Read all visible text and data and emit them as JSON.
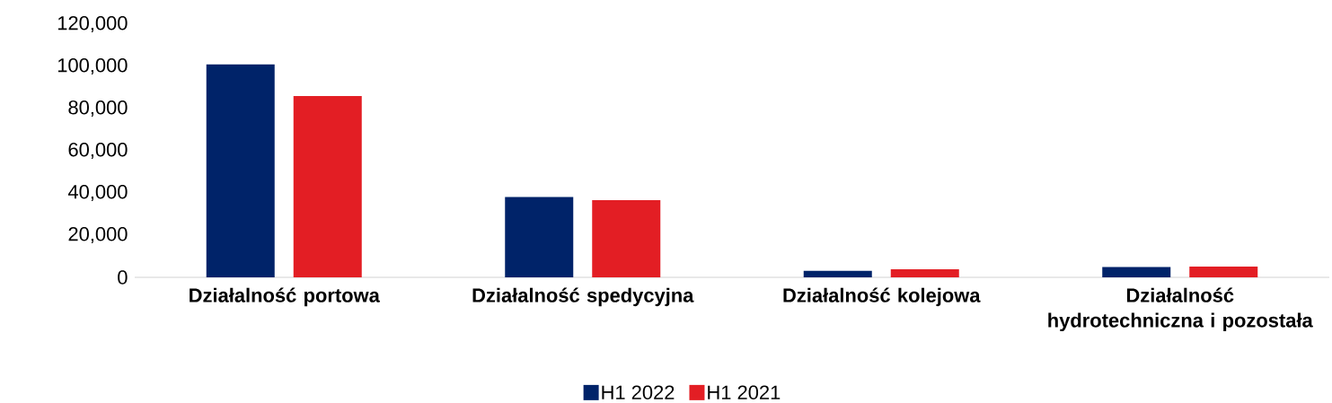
{
  "chart_data": {
    "type": "bar",
    "categories": [
      "Działalność portowa",
      "Działalność spedycyjna",
      "Działalność kolejowa",
      "Działalność hydrotechniczna i pozostała"
    ],
    "series": [
      {
        "name": "H1 2022",
        "color": "#002369",
        "values": [
          101000,
          38100,
          3100,
          4900
        ]
      },
      {
        "name": "H1 2021",
        "color": "#e31e24",
        "values": [
          86000,
          36600,
          3800,
          5100
        ]
      }
    ],
    "ylim": [
      0,
      120000
    ],
    "yticks": [
      {
        "value": 0,
        "label": "0"
      },
      {
        "value": 20000,
        "label": "20,000"
      },
      {
        "value": 40000,
        "label": "40,000"
      },
      {
        "value": 60000,
        "label": "60,000"
      },
      {
        "value": 80000,
        "label": "80,000"
      },
      {
        "value": 100000,
        "label": "100,000"
      },
      {
        "value": 120000,
        "label": "120,000"
      }
    ],
    "legend": "bottom"
  }
}
